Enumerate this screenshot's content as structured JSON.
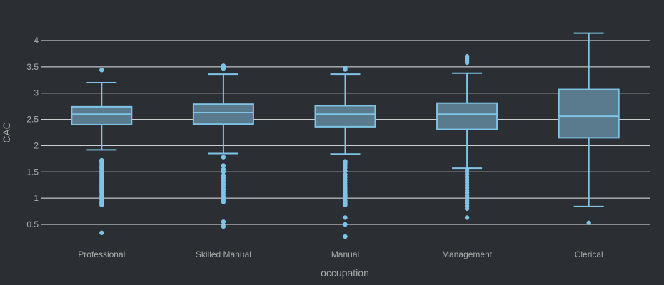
{
  "chart_data": {
    "type": "box",
    "title": "",
    "xlabel": "occupation",
    "ylabel": "CAC",
    "ylim": [
      0.2,
      4.3
    ],
    "yticks": [
      0.5,
      1,
      1.5,
      2,
      2.5,
      3,
      3.5,
      4
    ],
    "ytick_labels": [
      "0.5",
      "1",
      "1.5",
      "2",
      "2.5",
      "3",
      "3.5",
      "4"
    ],
    "grid": true,
    "colors": {
      "background": "#2b2e33",
      "grid": "#e6e6e6",
      "box_line": "#7ec4e6",
      "box_fill": "#5a7b8e",
      "text": "#aaaaaa"
    },
    "categories": [
      "Professional",
      "Skilled Manual",
      "Manual",
      "Management",
      "Clerical"
    ],
    "boxes": [
      {
        "name": "Professional",
        "lower_fence": 1.92,
        "q1": 2.4,
        "median": 2.6,
        "q3": 2.74,
        "upper_fence": 3.2,
        "outliers": [
          0.34,
          0.87,
          0.9,
          0.93,
          0.97,
          1.0,
          1.03,
          1.06,
          1.1,
          1.13,
          1.17,
          1.2,
          1.23,
          1.27,
          1.3,
          1.33,
          1.37,
          1.4,
          1.43,
          1.47,
          1.5,
          1.53,
          1.57,
          1.6,
          1.63,
          1.67,
          1.7,
          1.72,
          3.44
        ]
      },
      {
        "name": "Skilled Manual",
        "lower_fence": 1.85,
        "q1": 2.41,
        "median": 2.63,
        "q3": 2.79,
        "upper_fence": 3.36,
        "outliers": [
          0.46,
          0.55,
          0.93,
          0.97,
          1.02,
          1.07,
          1.12,
          1.17,
          1.22,
          1.27,
          1.32,
          1.38,
          1.43,
          1.5,
          1.55,
          1.62,
          1.78,
          3.47,
          3.5,
          3.52
        ]
      },
      {
        "name": "Manual",
        "lower_fence": 1.84,
        "q1": 2.36,
        "median": 2.6,
        "q3": 2.76,
        "upper_fence": 3.36,
        "outliers": [
          0.27,
          0.5,
          0.63,
          0.87,
          0.9,
          0.95,
          1.0,
          1.04,
          1.08,
          1.12,
          1.16,
          1.2,
          1.25,
          1.3,
          1.35,
          1.4,
          1.45,
          1.52,
          1.58,
          1.63,
          1.67,
          1.7,
          3.45,
          3.48
        ]
      },
      {
        "name": "Management",
        "lower_fence": 1.57,
        "q1": 2.31,
        "median": 2.6,
        "q3": 2.81,
        "upper_fence": 3.38,
        "outliers": [
          0.63,
          0.8,
          0.85,
          0.9,
          0.95,
          1.0,
          1.05,
          1.1,
          1.15,
          1.2,
          1.25,
          1.3,
          1.35,
          1.4,
          1.45,
          1.5,
          1.54,
          3.58,
          3.62,
          3.66,
          3.7
        ]
      },
      {
        "name": "Clerical",
        "lower_fence": 0.84,
        "q1": 2.15,
        "median": 2.56,
        "q3": 3.07,
        "upper_fence": 4.14,
        "outliers": [
          0.53
        ]
      }
    ]
  }
}
